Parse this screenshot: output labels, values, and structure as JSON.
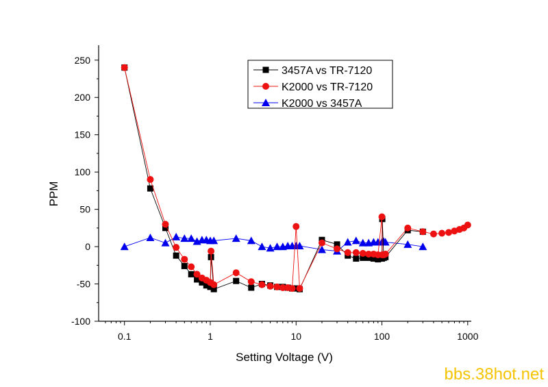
{
  "chart_data": {
    "type": "scatter",
    "xscale": "log",
    "xlabel": "Setting Voltage (V)",
    "ylabel": "PPM",
    "xlim": [
      0.05,
      1100
    ],
    "ylim": [
      -100,
      270
    ],
    "x_ticks": [
      0.1,
      1,
      10,
      100,
      1000
    ],
    "x_tick_labels": [
      "0.1",
      "1",
      "10",
      "100",
      "1000"
    ],
    "y_ticks": [
      -100,
      -50,
      0,
      50,
      100,
      150,
      200,
      250
    ],
    "y_tick_labels": [
      "-100",
      "-50",
      "0",
      "50",
      "100",
      "150",
      "200",
      "250"
    ],
    "legend_position": "top-center",
    "series": [
      {
        "name": "3457A vs TR-7120",
        "color": "#000000",
        "marker": "square",
        "points": [
          [
            0.1,
            240
          ],
          [
            0.2,
            78
          ],
          [
            0.3,
            25
          ],
          [
            0.4,
            -12
          ],
          [
            0.5,
            -26
          ],
          [
            0.6,
            -37
          ],
          [
            0.7,
            -44
          ],
          [
            0.8,
            -48
          ],
          [
            0.9,
            -52
          ],
          [
            1.0,
            -54
          ],
          [
            1.02,
            -14
          ],
          [
            1.1,
            -57
          ],
          [
            2,
            -46
          ],
          [
            3,
            -55
          ],
          [
            4,
            -50
          ],
          [
            5,
            -52
          ],
          [
            6,
            -54
          ],
          [
            7,
            -54
          ],
          [
            8,
            -55
          ],
          [
            9,
            -56
          ],
          [
            10,
            -56
          ],
          [
            11,
            -57
          ],
          [
            20,
            9
          ],
          [
            30,
            3
          ],
          [
            40,
            -12
          ],
          [
            50,
            -16
          ],
          [
            60,
            -15
          ],
          [
            70,
            -15
          ],
          [
            80,
            -16
          ],
          [
            90,
            -17
          ],
          [
            100,
            -16
          ],
          [
            101,
            37
          ],
          [
            105,
            -15
          ],
          [
            110,
            -14
          ],
          [
            200,
            22
          ],
          [
            300,
            20
          ]
        ]
      },
      {
        "name": "K2000 vs TR-7120",
        "color": "#ee1111",
        "marker": "circle",
        "points": [
          [
            0.1,
            240
          ],
          [
            0.2,
            90
          ],
          [
            0.3,
            30
          ],
          [
            0.4,
            -1
          ],
          [
            0.5,
            -17
          ],
          [
            0.6,
            -27
          ],
          [
            0.7,
            -37
          ],
          [
            0.8,
            -42
          ],
          [
            0.9,
            -45
          ],
          [
            1.0,
            -48
          ],
          [
            1.02,
            -6
          ],
          [
            1.1,
            -51
          ],
          [
            2,
            -35
          ],
          [
            3,
            -47
          ],
          [
            4,
            -51
          ],
          [
            5,
            -53
          ],
          [
            6,
            -54
          ],
          [
            7,
            -55
          ],
          [
            8,
            -55
          ],
          [
            9,
            -56
          ],
          [
            10,
            27
          ],
          [
            11,
            -56
          ],
          [
            20,
            5
          ],
          [
            30,
            -3
          ],
          [
            40,
            -8
          ],
          [
            50,
            -8
          ],
          [
            60,
            -9
          ],
          [
            70,
            -10
          ],
          [
            80,
            -10
          ],
          [
            90,
            -11
          ],
          [
            100,
            40
          ],
          [
            101,
            -11
          ],
          [
            105,
            -11
          ],
          [
            110,
            -10
          ],
          [
            200,
            25
          ],
          [
            300,
            20
          ],
          [
            400,
            17
          ],
          [
            500,
            18
          ],
          [
            600,
            19
          ],
          [
            700,
            21
          ],
          [
            800,
            23
          ],
          [
            900,
            25
          ],
          [
            1000,
            29
          ]
        ]
      },
      {
        "name": "K2000 vs 3457A",
        "color": "#0000ee",
        "marker": "triangle",
        "points": [
          [
            0.1,
            0
          ],
          [
            0.2,
            12
          ],
          [
            0.3,
            5
          ],
          [
            0.4,
            13
          ],
          [
            0.5,
            11
          ],
          [
            0.6,
            11
          ],
          [
            0.7,
            7
          ],
          [
            0.8,
            9
          ],
          [
            0.9,
            9
          ],
          [
            1.0,
            8
          ],
          [
            1.1,
            8
          ],
          [
            2,
            11
          ],
          [
            3,
            8
          ],
          [
            4,
            0
          ],
          [
            5,
            -2
          ],
          [
            6,
            0
          ],
          [
            7,
            0
          ],
          [
            8,
            1
          ],
          [
            9,
            1
          ],
          [
            10,
            1
          ],
          [
            11,
            1
          ],
          [
            20,
            -4
          ],
          [
            30,
            -6
          ],
          [
            40,
            6
          ],
          [
            50,
            8
          ],
          [
            60,
            5
          ],
          [
            70,
            5
          ],
          [
            80,
            6
          ],
          [
            90,
            6
          ],
          [
            100,
            6
          ],
          [
            105,
            7
          ],
          [
            110,
            6
          ],
          [
            200,
            3
          ],
          [
            300,
            0
          ]
        ]
      }
    ]
  },
  "watermark": "bbs.38hot.net"
}
